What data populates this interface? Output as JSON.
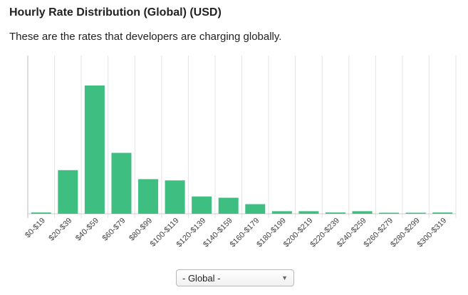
{
  "header": {
    "title": "Hourly Rate Distribution (Global) (USD)",
    "subtitle": "These are the rates that developers are charging globally."
  },
  "filter": {
    "selected": "- Global -",
    "caret_icon": "caret-down-icon"
  },
  "colors": {
    "bar": "#3fbe82",
    "grid": "#e3e3e3",
    "axis": "#cccccc"
  },
  "chart_data": {
    "type": "bar",
    "categories": [
      "$0-$19",
      "$20-$39",
      "$40-$59",
      "$60-$79",
      "$80-$99",
      "$100-$119",
      "$120-$139",
      "$140-$159",
      "$160-$179",
      "$180-$199",
      "$200-$219",
      "$220-$239",
      "$240-$259",
      "$260-$279",
      "$280-$299",
      "$300-$319"
    ],
    "values": [
      1,
      34,
      100,
      47.5,
      27,
      26,
      13.5,
      12.5,
      7.5,
      2,
      2,
      1,
      2,
      0.5,
      0.5,
      1
    ],
    "ylim": [
      0,
      115
    ],
    "grid": true,
    "legend": "none"
  }
}
